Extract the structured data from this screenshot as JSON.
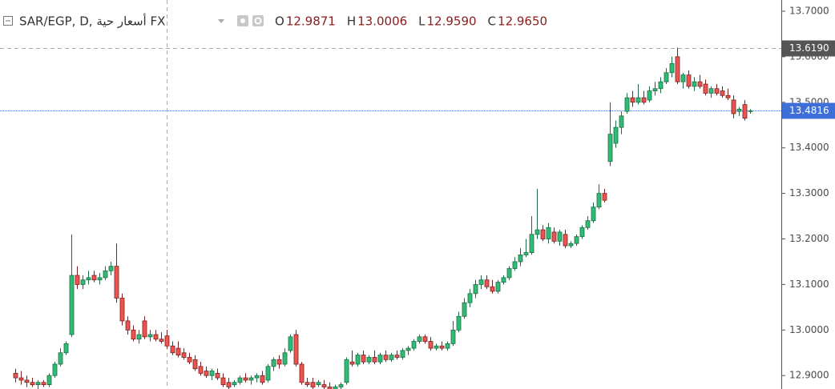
{
  "chart_data": {
    "type": "candlestick",
    "title": "SAR/EGP, D, أسعار حية FX",
    "legend_values": [
      {
        "key": "O",
        "text": "12.9871"
      },
      {
        "key": "H",
        "text": "13.0006"
      },
      {
        "key": "L",
        "text": "12.9590"
      },
      {
        "key": "C",
        "text": "12.9650"
      }
    ],
    "ylim": [
      12.8705,
      13.7246
    ],
    "yticks": [
      {
        "value": 12.9,
        "label": "12.9000"
      },
      {
        "value": 13.0,
        "label": "13.0000"
      },
      {
        "value": 13.1,
        "label": "13.1000"
      },
      {
        "value": 13.2,
        "label": "13.2000"
      },
      {
        "value": 13.3,
        "label": "13.3000"
      },
      {
        "value": 13.4,
        "label": "13.4000"
      },
      {
        "value": 13.5,
        "label": "13.5000"
      },
      {
        "value": 13.6,
        "label": "13.6000"
      },
      {
        "value": 13.7,
        "label": "13.7000"
      }
    ],
    "up_color": "#2dbd75",
    "down_color": "#ef5350",
    "last_price_color": "#3e6ed8",
    "crosshair_color": "#555555",
    "last_price": 13.4816,
    "crosshair": {
      "candle": 27,
      "value": 13.619,
      "label": "13.6190"
    },
    "ohlc": [
      [
        12.905,
        12.915,
        12.885,
        12.895
      ],
      [
        12.895,
        12.91,
        12.88,
        12.89
      ],
      [
        12.89,
        12.9,
        12.875,
        12.885
      ],
      [
        12.885,
        12.895,
        12.875,
        12.88
      ],
      [
        12.88,
        12.89,
        12.87,
        12.885
      ],
      [
        12.885,
        12.89,
        12.875,
        12.88
      ],
      [
        12.88,
        12.905,
        12.875,
        12.9
      ],
      [
        12.9,
        12.93,
        12.895,
        12.925
      ],
      [
        12.925,
        12.96,
        12.92,
        12.95
      ],
      [
        12.95,
        12.975,
        12.945,
        12.97
      ],
      [
        12.99,
        13.21,
        12.985,
        13.12
      ],
      [
        13.12,
        13.14,
        13.09,
        13.1
      ],
      [
        13.1,
        13.12,
        13.09,
        13.11
      ],
      [
        13.11,
        13.13,
        13.1,
        13.115
      ],
      [
        13.12,
        13.13,
        13.105,
        13.11
      ],
      [
        13.11,
        13.125,
        13.1,
        13.115
      ],
      [
        13.115,
        13.14,
        13.11,
        13.13
      ],
      [
        13.13,
        13.15,
        13.12,
        13.14
      ],
      [
        13.14,
        13.19,
        13.06,
        13.07
      ],
      [
        13.07,
        13.08,
        13.01,
        13.02
      ],
      [
        13.02,
        13.03,
        12.99,
        13.0
      ],
      [
        13.0,
        13.01,
        12.975,
        12.98
      ],
      [
        12.98,
        13.0,
        12.97,
        12.99
      ],
      [
        13.02,
        13.03,
        12.98,
        12.985
      ],
      [
        12.985,
        13.0,
        12.975,
        12.99
      ],
      [
        12.99,
        13.0,
        12.975,
        12.98
      ],
      [
        12.98,
        12.995,
        12.97,
        12.975
      ],
      [
        12.9871,
        13.0006,
        12.959,
        12.965
      ],
      [
        12.965,
        12.975,
        12.945,
        12.95
      ],
      [
        12.96,
        12.975,
        12.94,
        12.945
      ],
      [
        12.95,
        12.96,
        12.935,
        12.94
      ],
      [
        12.94,
        12.95,
        12.925,
        12.93
      ],
      [
        12.935,
        12.945,
        12.91,
        12.915
      ],
      [
        12.92,
        12.93,
        12.9,
        12.905
      ],
      [
        12.91,
        12.92,
        12.895,
        12.9
      ],
      [
        12.9,
        12.915,
        12.89,
        12.91
      ],
      [
        12.905,
        12.915,
        12.89,
        12.895
      ],
      [
        12.895,
        12.905,
        12.875,
        12.88
      ],
      [
        12.885,
        12.895,
        12.87,
        12.875
      ],
      [
        12.88,
        12.89,
        12.875,
        12.885
      ],
      [
        12.885,
        12.9,
        12.88,
        12.895
      ],
      [
        12.895,
        12.905,
        12.885,
        12.89
      ],
      [
        12.89,
        12.9,
        12.88,
        12.895
      ],
      [
        12.895,
        12.905,
        12.885,
        12.9
      ],
      [
        12.9,
        12.91,
        12.88,
        12.885
      ],
      [
        12.89,
        12.925,
        12.885,
        12.92
      ],
      [
        12.92,
        12.94,
        12.91,
        12.935
      ],
      [
        12.935,
        12.945,
        12.915,
        12.925
      ],
      [
        12.925,
        12.96,
        12.92,
        12.95
      ],
      [
        12.955,
        12.99,
        12.95,
        12.985
      ],
      [
        12.99,
        13.0,
        12.92,
        12.925
      ],
      [
        12.925,
        12.93,
        12.88,
        12.885
      ],
      [
        12.885,
        12.895,
        12.875,
        12.88
      ],
      [
        12.885,
        12.895,
        12.87,
        12.875
      ],
      [
        12.88,
        12.89,
        12.875,
        12.885
      ],
      [
        12.88,
        12.89,
        12.87,
        12.875
      ],
      [
        12.875,
        12.885,
        12.86,
        12.87
      ],
      [
        12.87,
        12.88,
        12.86,
        12.875
      ],
      [
        12.875,
        12.885,
        12.87,
        12.88
      ],
      [
        12.885,
        12.94,
        12.88,
        12.935
      ],
      [
        12.93,
        12.955,
        12.92,
        12.925
      ],
      [
        12.925,
        12.95,
        12.92,
        12.945
      ],
      [
        12.945,
        12.955,
        12.925,
        12.93
      ],
      [
        12.93,
        12.945,
        12.925,
        12.94
      ],
      [
        12.94,
        12.955,
        12.925,
        12.93
      ],
      [
        12.93,
        12.95,
        12.925,
        12.945
      ],
      [
        12.945,
        12.955,
        12.93,
        12.935
      ],
      [
        12.935,
        12.95,
        12.93,
        12.945
      ],
      [
        12.945,
        12.955,
        12.935,
        12.94
      ],
      [
        12.94,
        12.96,
        12.935,
        12.955
      ],
      [
        12.955,
        12.965,
        12.945,
        12.96
      ],
      [
        12.96,
        12.98,
        12.955,
        12.975
      ],
      [
        12.975,
        12.99,
        12.97,
        12.985
      ],
      [
        12.985,
        12.99,
        12.97,
        12.975
      ],
      [
        12.975,
        12.985,
        12.955,
        12.96
      ],
      [
        12.96,
        12.97,
        12.955,
        12.965
      ],
      [
        12.965,
        12.975,
        12.955,
        12.96
      ],
      [
        12.96,
        12.975,
        12.955,
        12.97
      ],
      [
        12.97,
        13.02,
        12.965,
        13.0
      ],
      [
        13.0,
        13.04,
        12.995,
        13.03
      ],
      [
        13.03,
        13.07,
        13.025,
        13.06
      ],
      [
        13.06,
        13.09,
        13.05,
        13.08
      ],
      [
        13.08,
        13.11,
        13.07,
        13.1
      ],
      [
        13.1,
        13.12,
        13.09,
        13.11
      ],
      [
        13.11,
        13.12,
        13.09,
        13.095
      ],
      [
        13.095,
        13.11,
        13.08,
        13.085
      ],
      [
        13.085,
        13.11,
        13.08,
        13.105
      ],
      [
        13.105,
        13.12,
        13.1,
        13.115
      ],
      [
        13.115,
        13.14,
        13.11,
        13.135
      ],
      [
        13.135,
        13.16,
        13.13,
        13.15
      ],
      [
        13.15,
        13.18,
        13.14,
        13.165
      ],
      [
        13.165,
        13.2,
        13.16,
        13.17
      ],
      [
        13.17,
        13.25,
        13.165,
        13.21
      ],
      [
        13.21,
        13.31,
        13.2,
        13.22
      ],
      [
        13.22,
        13.23,
        13.195,
        13.2
      ],
      [
        13.2,
        13.235,
        13.19,
        13.225
      ],
      [
        13.215,
        13.225,
        13.19,
        13.195
      ],
      [
        13.195,
        13.22,
        13.185,
        13.215
      ],
      [
        13.21,
        13.22,
        13.18,
        13.185
      ],
      [
        13.185,
        13.195,
        13.18,
        13.19
      ],
      [
        13.19,
        13.21,
        13.185,
        13.205
      ],
      [
        13.205,
        13.23,
        13.2,
        13.225
      ],
      [
        13.225,
        13.25,
        13.22,
        13.24
      ],
      [
        13.24,
        13.28,
        13.235,
        13.27
      ],
      [
        13.27,
        13.32,
        13.265,
        13.3
      ],
      [
        13.3,
        13.31,
        13.28,
        13.285
      ],
      [
        13.37,
        13.5,
        13.36,
        13.43
      ],
      [
        13.41,
        13.46,
        13.4,
        13.445
      ],
      [
        13.445,
        13.48,
        13.43,
        13.47
      ],
      [
        13.48,
        13.52,
        13.475,
        13.51
      ],
      [
        13.51,
        13.525,
        13.49,
        13.5
      ],
      [
        13.5,
        13.54,
        13.495,
        13.51
      ],
      [
        13.51,
        13.525,
        13.495,
        13.5
      ],
      [
        13.505,
        13.535,
        13.5,
        13.525
      ],
      [
        13.525,
        13.545,
        13.515,
        13.53
      ],
      [
        13.53,
        13.555,
        13.52,
        13.545
      ],
      [
        13.545,
        13.575,
        13.54,
        13.565
      ],
      [
        13.565,
        13.6,
        13.555,
        13.585
      ],
      [
        13.6,
        13.62,
        13.54,
        13.545
      ],
      [
        13.545,
        13.565,
        13.53,
        13.56
      ],
      [
        13.56,
        13.57,
        13.53,
        13.535
      ],
      [
        13.535,
        13.555,
        13.525,
        13.545
      ],
      [
        13.545,
        13.56,
        13.53,
        13.535
      ],
      [
        13.54,
        13.55,
        13.515,
        13.52
      ],
      [
        13.52,
        13.535,
        13.51,
        13.53
      ],
      [
        13.53,
        13.54,
        13.515,
        13.52
      ],
      [
        13.525,
        13.535,
        13.51,
        13.515
      ],
      [
        13.515,
        13.53,
        13.505,
        13.51
      ],
      [
        13.505,
        13.515,
        13.465,
        13.475
      ],
      [
        13.48,
        13.49,
        13.47,
        13.485
      ],
      [
        13.495,
        13.505,
        13.46,
        13.465
      ],
      [
        13.48,
        13.485,
        13.475,
        13.4816
      ]
    ]
  }
}
